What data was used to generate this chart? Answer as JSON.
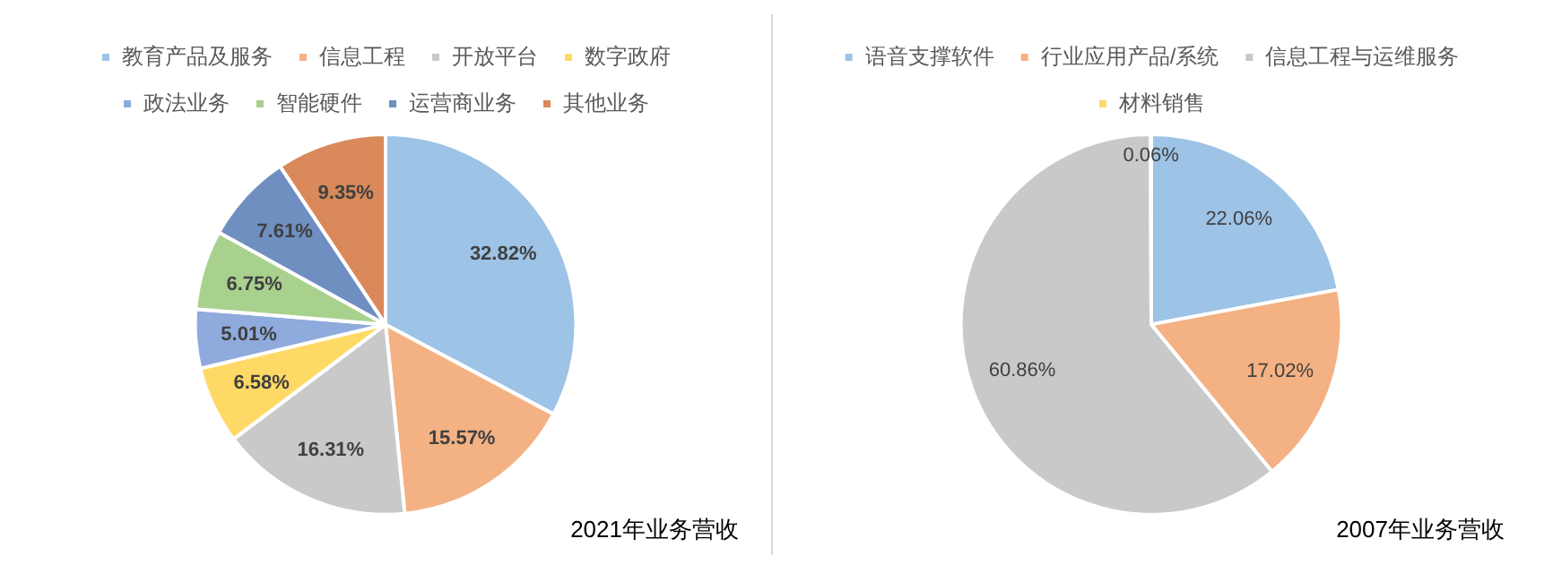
{
  "chart_data": [
    {
      "type": "pie",
      "title": "2021年业务营收",
      "categories": [
        "教育产品及服务",
        "信息工程",
        "开放平台",
        "数字政府",
        "政法业务",
        "智能硬件",
        "运营商业务",
        "其他业务"
      ],
      "values": [
        32.82,
        15.57,
        16.31,
        6.58,
        5.01,
        6.75,
        7.61,
        9.35
      ],
      "value_labels": [
        "32.82%",
        "15.57%",
        "16.31%",
        "6.58%",
        "5.01%",
        "6.75%",
        "7.61%",
        "9.35%"
      ],
      "colors": [
        "#9dc3e6",
        "#f4b183",
        "#c9c9c9",
        "#ffd966",
        "#8faadc",
        "#a9d18e",
        "#6f8fc0",
        "#d9895a"
      ],
      "legend": "top"
    },
    {
      "type": "pie",
      "title": "2007年业务营收",
      "categories": [
        "语音支撑软件",
        "行业应用产品/系统",
        "信息工程与运维服务",
        "材料销售"
      ],
      "values": [
        22.06,
        17.02,
        60.86,
        0.06
      ],
      "value_labels": [
        "22.06%",
        "17.02%",
        "60.86%",
        "0.06%"
      ],
      "colors": [
        "#9dc3e6",
        "#f4b183",
        "#c9c9c9",
        "#ffd966"
      ],
      "legend": "top"
    }
  ]
}
